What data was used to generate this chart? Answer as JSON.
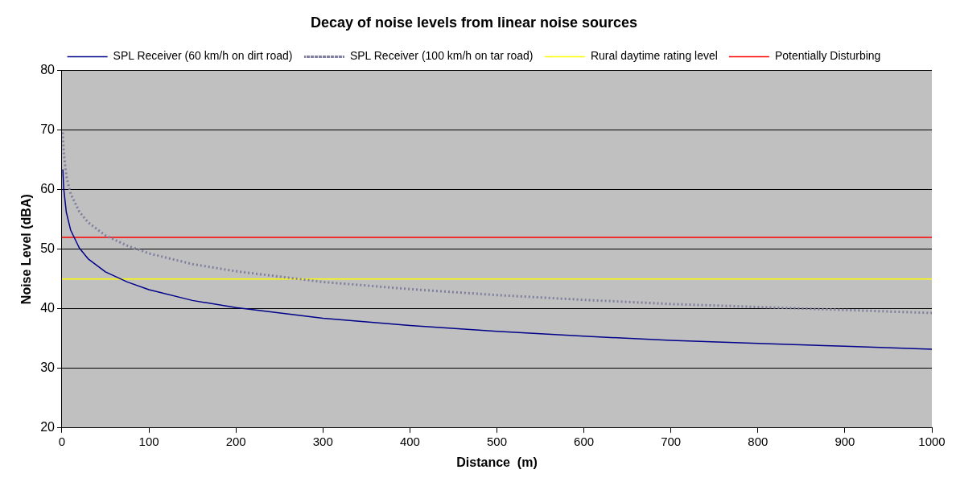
{
  "chart_data": {
    "type": "line",
    "title": "Decay of noise levels from linear noise sources",
    "xlabel": "Distance  (m)",
    "ylabel": "Noise Level (dBA)",
    "xlim": [
      0,
      1000
    ],
    "xticks": [
      0,
      100,
      200,
      300,
      400,
      500,
      600,
      700,
      800,
      900,
      1000
    ],
    "ylim": [
      20,
      80
    ],
    "yticks": [
      20,
      30,
      40,
      50,
      60,
      70,
      80
    ],
    "grid": "y",
    "legend": "top",
    "marker": "none",
    "series": [
      {
        "name": "SPL Receiver (60 km/h on dirt road)",
        "color": "#00008b",
        "line_style": "solid",
        "x": [
          1,
          2,
          5,
          10,
          20,
          30,
          50,
          75,
          100,
          150,
          200,
          300,
          400,
          500,
          600,
          700,
          800,
          900,
          1000
        ],
        "values": [
          63.4,
          60.2,
          56.2,
          53.2,
          50.2,
          48.4,
          46.2,
          44.5,
          43.2,
          41.4,
          40.2,
          38.4,
          37.2,
          36.2,
          35.4,
          34.7,
          34.2,
          33.7,
          33.2
        ]
      },
      {
        "name": "SPL Receiver (100 km/h on tar road)",
        "color": "#7f7f9f",
        "line_style": "dotted",
        "x": [
          1,
          2,
          5,
          10,
          20,
          30,
          50,
          75,
          100,
          150,
          200,
          300,
          400,
          500,
          600,
          700,
          800,
          900,
          1000
        ],
        "values": [
          69.6,
          66.3,
          62.3,
          59.3,
          56.3,
          54.5,
          52.3,
          50.6,
          49.3,
          47.5,
          46.3,
          44.5,
          43.3,
          42.3,
          41.5,
          40.8,
          40.3,
          39.8,
          39.3
        ]
      },
      {
        "name": "Rural daytime rating level",
        "color": "#ffff00",
        "line_style": "solid",
        "x": [
          0,
          1000
        ],
        "values": [
          45,
          45
        ]
      },
      {
        "name": "Potentially Disturbing",
        "color": "#ff0000",
        "line_style": "solid",
        "x": [
          0,
          1000
        ],
        "values": [
          52,
          52
        ]
      }
    ]
  }
}
